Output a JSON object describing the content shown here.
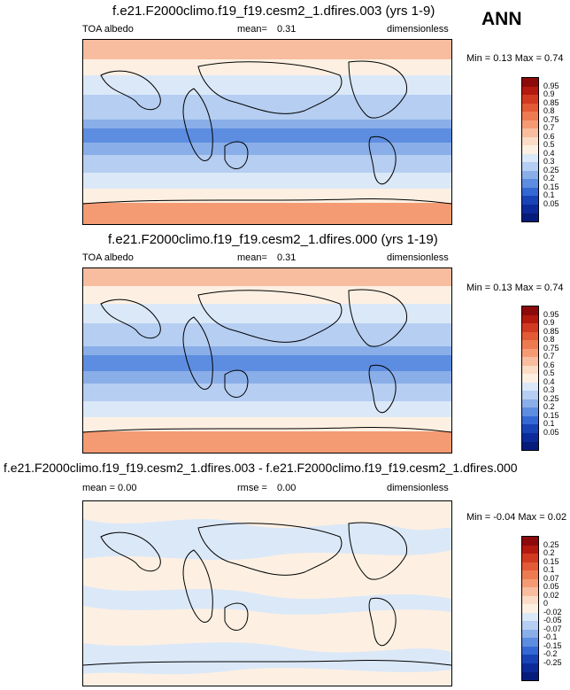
{
  "season": "ANN",
  "panels": [
    {
      "title": "f.e21.F2000climo.f19_f19.cesm2_1.dfires.003 (yrs 1-9)",
      "left": "TOA albedo",
      "mid_label": "mean=",
      "mid_value": "0.31",
      "right": "dimensionless",
      "minmax": "Min =  0.13 Max =  0.74",
      "levels": [
        "0.95",
        "0.9",
        "0.85",
        "0.8",
        "0.75",
        "0.7",
        "0.6",
        "0.5",
        "0.4",
        "0.3",
        "0.25",
        "0.2",
        "0.15",
        "0.1",
        "0.05"
      ],
      "colors": [
        "#8c0a0a",
        "#b3190f",
        "#d13a20",
        "#e35a36",
        "#ee7a52",
        "#f49b74",
        "#f8bd9f",
        "#fbdcc6",
        "#fdf0e2",
        "#dbe8f8",
        "#b5cef1",
        "#8aaee8",
        "#5d8de0",
        "#3568d4",
        "#1844b8",
        "#0c2a99",
        "#061c7a"
      ]
    },
    {
      "title": "f.e21.F2000climo.f19_f19.cesm2_1.dfires.000 (yrs 1-19)",
      "left": "TOA albedo",
      "mid_label": "mean=",
      "mid_value": "0.31",
      "right": "dimensionless",
      "minmax": "Min =  0.13 Max =  0.74",
      "levels": [
        "0.95",
        "0.9",
        "0.85",
        "0.8",
        "0.75",
        "0.7",
        "0.6",
        "0.5",
        "0.4",
        "0.3",
        "0.25",
        "0.2",
        "0.15",
        "0.1",
        "0.05"
      ],
      "colors": [
        "#8c0a0a",
        "#b3190f",
        "#d13a20",
        "#e35a36",
        "#ee7a52",
        "#f49b74",
        "#f8bd9f",
        "#fbdcc6",
        "#fdf0e2",
        "#dbe8f8",
        "#b5cef1",
        "#8aaee8",
        "#5d8de0",
        "#3568d4",
        "#1844b8",
        "#0c2a99",
        "#061c7a"
      ]
    },
    {
      "title": "f.e21.F2000climo.f19_f19.cesm2_1.dfires.003 - f.e21.F2000climo.f19_f19.cesm2_1.dfires.000",
      "left": "mean =  0.00",
      "mid_label": "rmse =",
      "mid_value": "0.00",
      "right": "dimensionless",
      "minmax": "Min = -0.04 Max =  0.02",
      "levels": [
        "0.25",
        "0.2",
        "0.15",
        "0.1",
        "0.07",
        "0.05",
        "0.02",
        "0",
        "-0.02",
        "-0.05",
        "-0.07",
        "-0.1",
        "-0.15",
        "-0.2",
        "-0.25"
      ],
      "colors": [
        "#8c0a0a",
        "#b3190f",
        "#d13a20",
        "#e35a36",
        "#ee7a52",
        "#f49b74",
        "#f8bd9f",
        "#fbdcc6",
        "#fdf0e2",
        "#dbe8f8",
        "#b5cef1",
        "#8aaee8",
        "#5d8de0",
        "#3568d4",
        "#1844b8",
        "#0c2a99",
        "#061c7a"
      ]
    }
  ]
}
